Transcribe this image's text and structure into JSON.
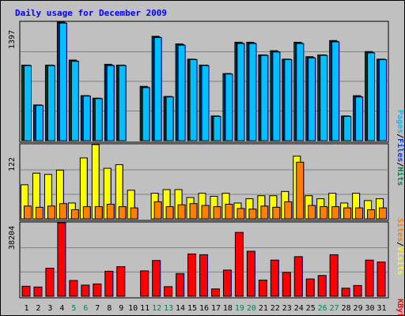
{
  "title": "Daily usage for December 2009",
  "colors": {
    "background": "#c0c0c0",
    "panel": "#c0c0c0",
    "hits": "#00805c",
    "files": "#0040ff",
    "pages": "#00c0ff",
    "visits": "#ffff00",
    "sites": "#ff8000",
    "kbytes": "#ff0000",
    "title": "#0000ff",
    "weekend_label": "#00805c",
    "weekday_label": "#000000",
    "grid": "#808080"
  },
  "chart_data": [
    {
      "type": "bar",
      "name_panel": "hits-files-pages",
      "title": "Daily usage for December 2009",
      "ylabel_parts": [
        "Pages",
        "Files",
        "Hits"
      ],
      "ymax_label": "1397",
      "ylim": [
        0,
        1397
      ],
      "categories": [
        "1",
        "2",
        "3",
        "4",
        "5",
        "6",
        "7",
        "8",
        "9",
        "10",
        "11",
        "12",
        "13",
        "14",
        "15",
        "16",
        "17",
        "18",
        "19",
        "20",
        "21",
        "22",
        "23",
        "24",
        "25",
        "26",
        "27",
        "28",
        "29",
        "30",
        "31"
      ],
      "series": [
        {
          "name": "Hits",
          "values": [
            890,
            420,
            890,
            1397,
            950,
            530,
            500,
            900,
            890,
            0,
            640,
            1230,
            520,
            1140,
            960,
            890,
            290,
            790,
            1160,
            1160,
            1010,
            1060,
            960,
            1160,
            990,
            1010,
            1180,
            290,
            530,
            1050,
            960
          ]
        },
        {
          "name": "Files",
          "values": [
            890,
            420,
            890,
            1390,
            940,
            530,
            500,
            890,
            890,
            0,
            630,
            1220,
            520,
            1130,
            960,
            890,
            290,
            790,
            1150,
            1150,
            1010,
            1050,
            960,
            1150,
            980,
            1010,
            1170,
            290,
            520,
            1040,
            960
          ]
        },
        {
          "name": "Pages",
          "values": [
            885,
            415,
            885,
            1385,
            935,
            525,
            495,
            885,
            885,
            0,
            625,
            1215,
            515,
            1125,
            955,
            885,
            285,
            785,
            1145,
            1145,
            1005,
            1045,
            955,
            1145,
            975,
            1005,
            1165,
            285,
            515,
            1035,
            955
          ]
        }
      ],
      "legend": "right-vertical"
    },
    {
      "type": "bar",
      "name_panel": "visits-sites",
      "ylabel_parts": [
        "Sites",
        "Visits"
      ],
      "ymax_label": "122",
      "ylim": [
        0,
        122
      ],
      "categories": [
        "1",
        "2",
        "3",
        "4",
        "5",
        "6",
        "7",
        "8",
        "9",
        "10",
        "11",
        "12",
        "13",
        "14",
        "15",
        "16",
        "17",
        "18",
        "19",
        "20",
        "21",
        "22",
        "23",
        "24",
        "25",
        "26",
        "27",
        "28",
        "29",
        "30",
        "31"
      ],
      "series": [
        {
          "name": "Visits",
          "values": [
            56,
            75,
            73,
            80,
            26,
            100,
            122,
            83,
            89,
            47,
            0,
            42,
            48,
            48,
            35,
            42,
            37,
            42,
            26,
            33,
            38,
            38,
            45,
            103,
            38,
            33,
            42,
            26,
            42,
            30,
            33
          ]
        },
        {
          "name": "Sites",
          "values": [
            21,
            19,
            21,
            25,
            15,
            20,
            20,
            24,
            20,
            18,
            0,
            28,
            20,
            23,
            25,
            22,
            20,
            24,
            17,
            16,
            21,
            19,
            28,
            93,
            22,
            20,
            20,
            18,
            18,
            15,
            18
          ]
        }
      ],
      "legend": "right-vertical"
    },
    {
      "type": "bar",
      "name_panel": "kbytes",
      "ylabel_parts": [
        "KBytes"
      ],
      "ymax_label": "38204",
      "ylim": [
        0,
        38204
      ],
      "categories": [
        "1",
        "2",
        "3",
        "4",
        "5",
        "6",
        "7",
        "8",
        "9",
        "10",
        "11",
        "12",
        "13",
        "14",
        "15",
        "16",
        "17",
        "18",
        "19",
        "20",
        "21",
        "22",
        "23",
        "24",
        "25",
        "26",
        "27",
        "28",
        "29",
        "30",
        "31"
      ],
      "series": [
        {
          "name": "KBytes",
          "values": [
            5200,
            4800,
            14600,
            38204,
            8200,
            5800,
            6400,
            13000,
            15400,
            0,
            13200,
            18600,
            5000,
            11800,
            22000,
            21600,
            3800,
            13600,
            33200,
            23400,
            8400,
            18800,
            12400,
            20600,
            9000,
            10800,
            21600,
            4200,
            5600,
            18800,
            17800
          ]
        }
      ],
      "legend": "right-vertical"
    }
  ],
  "x_labels": [
    "1",
    "2",
    "3",
    "4",
    "5",
    "6",
    "7",
    "8",
    "9",
    "10",
    "11",
    "12",
    "13",
    "14",
    "15",
    "16",
    "17",
    "18",
    "19",
    "20",
    "21",
    "22",
    "23",
    "24",
    "25",
    "26",
    "27",
    "28",
    "29",
    "30",
    "31"
  ],
  "weekend_days": [
    "5",
    "6",
    "12",
    "13",
    "19",
    "20",
    "26",
    "27"
  ],
  "legend": {
    "pages": "Pages",
    "files": "Files",
    "hits": "Hits",
    "sites": "Sites",
    "visits": "Visits",
    "kbytes": "KBytes",
    "sep": "/"
  }
}
